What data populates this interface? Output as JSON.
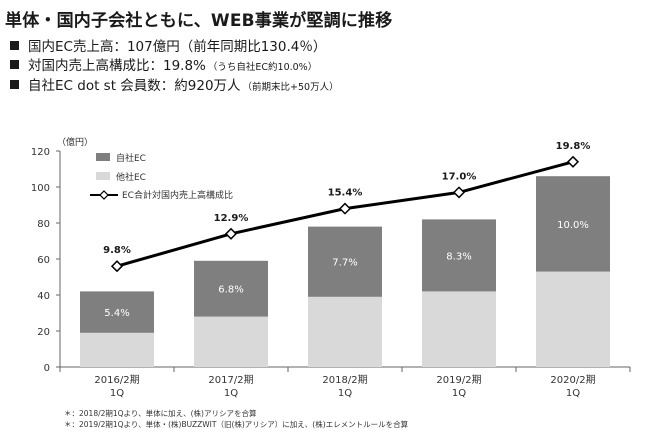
{
  "header": {
    "title": "単体・国内子会社ともに、WEB事業が堅調に推移",
    "bullets": [
      {
        "text": "国内EC売上高：107億円（前年同期比130.4％）",
        "note": ""
      },
      {
        "text": "対国内売上高構成比：19.8%",
        "note": "（うち自社EC約10.0%）"
      },
      {
        "text": "自社EC dot st 会員数：約920万人",
        "note": "（前期末比+50万人）"
      }
    ]
  },
  "chart_data": {
    "type": "bar",
    "stacked": true,
    "y_unit_label": "（億円）",
    "ylim": [
      0,
      120
    ],
    "yticks": [
      0,
      20,
      40,
      60,
      80,
      100,
      120
    ],
    "categories": [
      [
        "2016/2期",
        "1Q"
      ],
      [
        "2017/2期",
        "1Q"
      ],
      [
        "2018/2期",
        "1Q"
      ],
      [
        "2019/2期",
        "1Q"
      ],
      [
        "2020/2期",
        "1Q"
      ]
    ],
    "series": [
      {
        "name": "他社EC",
        "color": "#d9d9d9",
        "values": [
          19,
          28,
          39,
          42,
          53
        ]
      },
      {
        "name": "自社EC",
        "color": "#7f7f7f",
        "values": [
          23,
          31,
          39,
          40,
          53
        ],
        "labels": [
          "5.4%",
          "6.8%",
          "7.7%",
          "8.3%",
          "10.0%"
        ]
      }
    ],
    "line": {
      "name": "EC合計対国内売上高構成比",
      "color": "#000000",
      "plot_values": [
        56,
        74,
        88,
        97,
        114
      ],
      "labels": [
        "9.8%",
        "12.9%",
        "15.4%",
        "17.0%",
        "19.8%"
      ]
    },
    "legend": {
      "position": "top-left"
    },
    "grid": false
  },
  "footnotes": [
    "＊：2018/2期1Qより、単体に加え、(株)アリシアを合算",
    "＊：2019/2期1Qより、単体・(株)BUZZWIT（旧(株)アリシア）に加え、(株)エレメントルールを合算"
  ]
}
